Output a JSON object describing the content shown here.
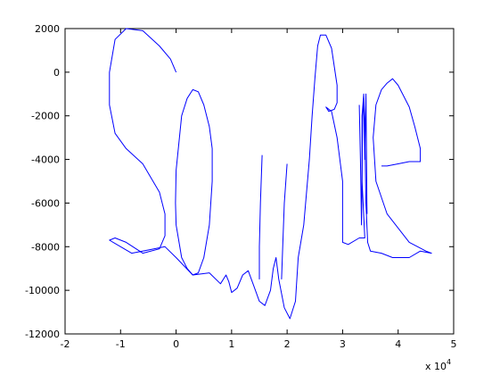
{
  "chart_data": {
    "type": "line",
    "title": "",
    "xlabel": "",
    "ylabel": "",
    "xlim": [
      -20000,
      50000
    ],
    "ylim": [
      -12000,
      2000
    ],
    "x_multiplier_label": {
      "base": "x 10",
      "exponent": "4"
    },
    "xticks": [
      -20000,
      -10000,
      0,
      10000,
      20000,
      30000,
      40000,
      50000
    ],
    "xtick_labels": [
      "-2",
      "-1",
      "0",
      "1",
      "2",
      "3",
      "4",
      "5"
    ],
    "yticks": [
      2000,
      0,
      -2000,
      -4000,
      -6000,
      -8000,
      -10000,
      -12000
    ],
    "ytick_labels": [
      "2000",
      "0",
      "-2000",
      "-4000",
      "-6000",
      "-8000",
      "-10000",
      "-12000"
    ],
    "grid": false,
    "legend": "none",
    "line_color": "#0000ff",
    "series": [
      {
        "points": [
          [
            0,
            0
          ],
          [
            -1000,
            600
          ],
          [
            -3000,
            1200
          ],
          [
            -6000,
            1900
          ],
          [
            -9000,
            2000
          ],
          [
            -11000,
            1500
          ],
          [
            -12000,
            0
          ],
          [
            -12000,
            -1500
          ],
          [
            -11000,
            -2800
          ],
          [
            -9000,
            -3500
          ],
          [
            -6000,
            -4200
          ],
          [
            -3000,
            -5500
          ],
          [
            -2000,
            -6500
          ],
          [
            -2000,
            -7500
          ],
          [
            -3000,
            -8100
          ],
          [
            -6000,
            -8300
          ],
          [
            -9000,
            -7800
          ],
          [
            -11000,
            -7600
          ],
          [
            -12000,
            -7700
          ],
          [
            -10000,
            -8000
          ],
          [
            -8000,
            -8300
          ],
          [
            -4000,
            -8100
          ],
          [
            -2000,
            -8000
          ],
          [
            0,
            -8500
          ],
          [
            3000,
            -9300
          ],
          [
            6000,
            -9200
          ],
          [
            8000,
            -9700
          ],
          [
            9000,
            -9300
          ],
          [
            9500,
            -9600
          ],
          [
            10000,
            -10100
          ],
          [
            11000,
            -9900
          ],
          [
            12000,
            -9300
          ],
          [
            13000,
            -9100
          ],
          [
            14000,
            -9800
          ],
          [
            15000,
            -10500
          ],
          [
            16000,
            -10700
          ],
          [
            17000,
            -10000
          ],
          [
            17500,
            -9000
          ],
          [
            18000,
            -8500
          ],
          [
            18500,
            -9500
          ],
          [
            19500,
            -10800
          ],
          [
            20500,
            -11300
          ],
          [
            21500,
            -10500
          ],
          [
            22000,
            -8500
          ],
          [
            23000,
            -7000
          ],
          [
            24000,
            -4000
          ],
          [
            24500,
            -2000
          ],
          [
            25000,
            -300
          ],
          [
            25500,
            1200
          ],
          [
            26000,
            1700
          ],
          [
            27000,
            1700
          ],
          [
            28000,
            1100
          ],
          [
            29000,
            -600
          ],
          [
            29000,
            -1400
          ],
          [
            28500,
            -1700
          ],
          [
            27500,
            -1800
          ],
          [
            27000,
            -1600
          ],
          [
            28000,
            -1800
          ],
          [
            29000,
            -3000
          ],
          [
            30000,
            -5000
          ],
          [
            30000,
            -6500
          ],
          [
            30000,
            -7800
          ],
          [
            31000,
            -7900
          ],
          [
            33000,
            -7600
          ],
          [
            34000,
            -7600
          ],
          [
            33500,
            -5000
          ],
          [
            33500,
            -2000
          ],
          [
            33800,
            -1000
          ],
          [
            34000,
            -2500
          ],
          [
            34200,
            -6000
          ],
          [
            34500,
            -7800
          ],
          [
            35000,
            -8200
          ],
          [
            37000,
            -8300
          ],
          [
            39000,
            -8500
          ],
          [
            42000,
            -8500
          ],
          [
            44000,
            -8200
          ],
          [
            46000,
            -8300
          ],
          [
            45000,
            -8200
          ],
          [
            42000,
            -7800
          ],
          [
            38000,
            -6500
          ],
          [
            36000,
            -5000
          ],
          [
            35500,
            -3000
          ],
          [
            36000,
            -1500
          ],
          [
            37000,
            -800
          ],
          [
            38000,
            -500
          ],
          [
            39000,
            -300
          ],
          [
            40000,
            -600
          ],
          [
            42000,
            -1600
          ],
          [
            43000,
            -2500
          ],
          [
            44000,
            -3500
          ],
          [
            44000,
            -4100
          ],
          [
            42000,
            -4100
          ],
          [
            40000,
            -4200
          ],
          [
            38000,
            -4300
          ],
          [
            37000,
            -4300
          ]
        ]
      },
      {
        "points": [
          [
            0,
            -4500
          ],
          [
            1000,
            -2000
          ],
          [
            2000,
            -1200
          ],
          [
            3000,
            -800
          ],
          [
            4000,
            -900
          ],
          [
            5000,
            -1500
          ],
          [
            6000,
            -2500
          ],
          [
            6500,
            -3500
          ],
          [
            6500,
            -5000
          ],
          [
            6000,
            -7000
          ],
          [
            5000,
            -8500
          ],
          [
            4000,
            -9200
          ],
          [
            3000,
            -9300
          ],
          [
            2000,
            -9000
          ],
          [
            1000,
            -8500
          ],
          [
            0,
            -7000
          ],
          [
            -100,
            -6000
          ],
          [
            0,
            -4500
          ]
        ]
      },
      {
        "points": [
          [
            15500,
            -3800
          ],
          [
            15200,
            -6000
          ],
          [
            15000,
            -8000
          ],
          [
            15000,
            -9500
          ]
        ]
      },
      {
        "points": [
          [
            20000,
            -4200
          ],
          [
            19500,
            -6000
          ],
          [
            19200,
            -8000
          ],
          [
            19000,
            -9500
          ]
        ]
      },
      {
        "points": [
          [
            33000,
            -1500
          ],
          [
            33200,
            -4000
          ],
          [
            33400,
            -7000
          ],
          [
            33600,
            -2000
          ],
          [
            33800,
            -1200
          ],
          [
            34000,
            -4000
          ],
          [
            34200,
            -1000
          ],
          [
            34400,
            -6500
          ]
        ]
      }
    ]
  }
}
